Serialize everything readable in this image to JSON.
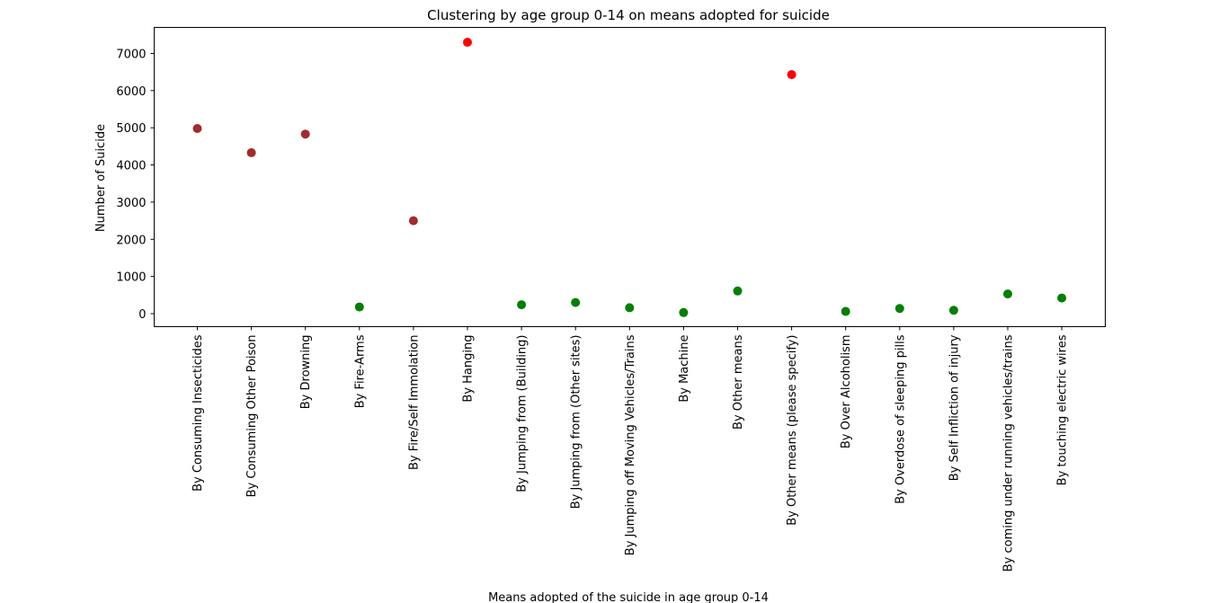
{
  "chart_data": {
    "type": "scatter",
    "title": "Clustering by age group 0-14 on means adopted for suicide",
    "xlabel": "Means adopted of the suicide in age group 0-14",
    "ylabel": "Number of Suicide",
    "ylim": [
      -350,
      7700
    ],
    "yticks": [
      0,
      1000,
      2000,
      3000,
      4000,
      5000,
      6000,
      7000
    ],
    "ytick_labels": [
      "0",
      "1000",
      "2000",
      "3000",
      "4000",
      "5000",
      "6000",
      "7000"
    ],
    "grid": false,
    "categories": [
      "By Consuming Insecticides",
      "By Consuming Other Poison",
      "By Drowning",
      "By Fire-Arms",
      "By Fire/Self Immolation",
      "By Hanging",
      "By Jumping from (Building)",
      "By Jumping from (Other sites)",
      "By Jumping off Moving Vehicles/Trains",
      "By Machine",
      "By Other means",
      "By Other means (please specify)",
      "By Over Alcoholism",
      "By Overdose of sleeping pills",
      "By Self Infliction of injury",
      "By coming under running vehicles/trains",
      "By touching electric wires"
    ],
    "values": [
      4980,
      4330,
      4830,
      180,
      2500,
      7300,
      240,
      300,
      160,
      30,
      610,
      6430,
      60,
      140,
      90,
      530,
      420
    ],
    "point_colors": [
      "#a52a2a",
      "#a52a2a",
      "#a52a2a",
      "#008000",
      "#a52a2a",
      "#ff0000",
      "#008000",
      "#008000",
      "#008000",
      "#008000",
      "#008000",
      "#ff0000",
      "#008000",
      "#008000",
      "#008000",
      "#008000",
      "#008000"
    ],
    "cluster_colors": [
      "#a52a2a",
      "#ff0000",
      "#008000"
    ]
  }
}
